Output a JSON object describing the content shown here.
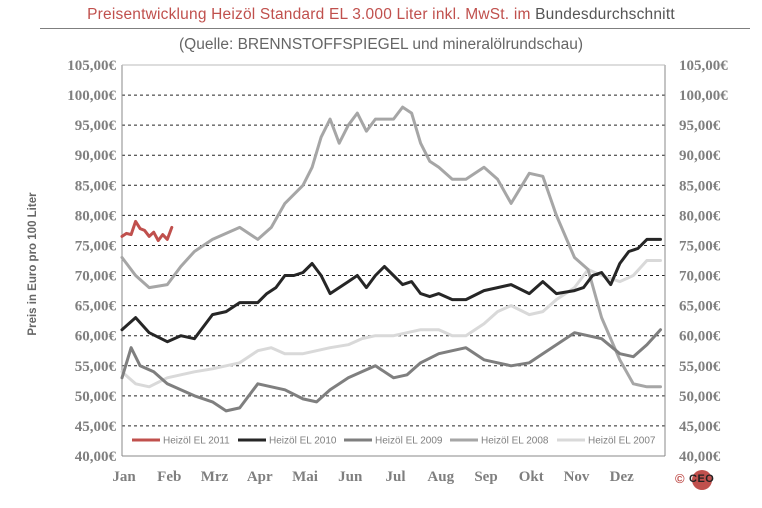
{
  "title": {
    "part1": "Preisentwicklung Heizöl Standard EL 3.000 Liter inkl. MwSt. im",
    "part2": "Bundesdurchschnitt"
  },
  "subtitle": "(Quelle: BRENNSTOFFSPIEGEL und mineralölrundschau)",
  "copyright": {
    "symbol": "©",
    "logo_text": "CEO"
  },
  "chart_data": {
    "type": "line",
    "ylabel": "Preis in Euro pro 100 Liter",
    "ylim": [
      40,
      105
    ],
    "y_ticks": [
      "40,00€",
      "45,00€",
      "50,00€",
      "55,00€",
      "60,00€",
      "65,00€",
      "70,00€",
      "75,00€",
      "80,00€",
      "85,00€",
      "90,00€",
      "95,00€",
      "100,00€",
      "105,00€"
    ],
    "x_ticks": [
      "Jan",
      "Feb",
      "Mrz",
      "Apr",
      "Mai",
      "Jun",
      "Jul",
      "Aug",
      "Sep",
      "Okt",
      "Nov",
      "Dez"
    ],
    "x_axis": "month of year (0 = 1 Jan, 12 = 31 Dec)",
    "grid": true,
    "legend": "bottom-inside",
    "series": [
      {
        "name": "Heizöl EL 2011",
        "color": "#c0504d",
        "width": 3,
        "x": [
          0,
          0.1,
          0.2,
          0.3,
          0.4,
          0.5,
          0.6,
          0.7,
          0.8,
          0.9,
          1.0,
          1.1
        ],
        "y": [
          76.5,
          77.0,
          76.8,
          79.0,
          77.8,
          77.5,
          76.5,
          77.2,
          75.8,
          76.8,
          76.0,
          78.0
        ]
      },
      {
        "name": "Heizöl EL 2010",
        "color": "#262626",
        "width": 3,
        "x": [
          0,
          0.3,
          0.6,
          1.0,
          1.3,
          1.6,
          2.0,
          2.3,
          2.6,
          3.0,
          3.2,
          3.4,
          3.6,
          3.8,
          4.0,
          4.2,
          4.4,
          4.6,
          4.8,
          5.0,
          5.2,
          5.4,
          5.6,
          5.8,
          6.0,
          6.2,
          6.4,
          6.6,
          6.8,
          7.0,
          7.3,
          7.6,
          8.0,
          8.3,
          8.6,
          9.0,
          9.3,
          9.6,
          10.0,
          10.2,
          10.4,
          10.6,
          10.8,
          11.0,
          11.2,
          11.4,
          11.6,
          11.9
        ],
        "y": [
          61,
          63,
          60.5,
          59,
          60,
          59.5,
          63.5,
          64,
          65.5,
          65.5,
          67,
          68,
          70,
          70,
          70.5,
          72,
          70,
          67,
          68,
          69,
          70,
          68,
          70,
          71.5,
          70,
          68.5,
          69,
          67,
          66.5,
          67,
          66,
          66,
          67.5,
          68,
          68.5,
          67,
          69,
          67,
          67.5,
          68,
          70,
          70.5,
          68.5,
          72,
          74,
          74.5,
          76,
          76
        ]
      },
      {
        "name": "Heizöl EL 2009",
        "color": "#7f7f7f",
        "width": 3,
        "x": [
          0,
          0.2,
          0.4,
          0.7,
          1.0,
          1.3,
          1.6,
          2.0,
          2.3,
          2.6,
          3.0,
          3.3,
          3.6,
          4.0,
          4.3,
          4.6,
          5.0,
          5.3,
          5.6,
          6.0,
          6.3,
          6.6,
          7.0,
          7.3,
          7.6,
          8.0,
          8.3,
          8.6,
          9.0,
          9.3,
          9.6,
          10.0,
          10.3,
          10.6,
          11.0,
          11.3,
          11.6,
          11.9
        ],
        "y": [
          53,
          58,
          55,
          54,
          52,
          51,
          50,
          49,
          47.5,
          48,
          52,
          51.5,
          51,
          49.5,
          49,
          51,
          53,
          54,
          55,
          53,
          53.5,
          55.5,
          57,
          57.5,
          58,
          56,
          55.5,
          55,
          55.5,
          57,
          58.5,
          60.5,
          60,
          59.5,
          57,
          56.5,
          58.5,
          61
        ]
      },
      {
        "name": "Heizöl EL 2008",
        "color": "#a6a6a6",
        "width": 3,
        "x": [
          0,
          0.3,
          0.6,
          1.0,
          1.3,
          1.6,
          2.0,
          2.3,
          2.6,
          3.0,
          3.3,
          3.6,
          4.0,
          4.2,
          4.4,
          4.6,
          4.8,
          5.0,
          5.2,
          5.4,
          5.6,
          5.8,
          6.0,
          6.2,
          6.4,
          6.6,
          6.8,
          7.0,
          7.3,
          7.6,
          8.0,
          8.3,
          8.6,
          9.0,
          9.3,
          9.6,
          10.0,
          10.3,
          10.6,
          11.0,
          11.3,
          11.6,
          11.9
        ],
        "y": [
          73,
          70,
          68,
          68.5,
          71.5,
          74,
          76,
          77,
          78,
          76,
          78,
          82,
          85,
          88,
          93,
          96,
          92,
          95,
          97,
          94,
          96,
          96,
          96,
          98,
          97,
          92,
          89,
          88,
          86,
          86,
          88,
          86,
          82,
          87,
          86.5,
          80,
          73,
          71,
          63,
          56,
          52,
          51.5,
          51.5
        ]
      },
      {
        "name": "Heizöl EL 2007",
        "color": "#d9d9d9",
        "width": 3,
        "x": [
          0,
          0.3,
          0.6,
          1.0,
          1.3,
          1.6,
          2.0,
          2.3,
          2.6,
          3.0,
          3.3,
          3.6,
          4.0,
          4.3,
          4.6,
          5.0,
          5.3,
          5.6,
          6.0,
          6.3,
          6.6,
          7.0,
          7.3,
          7.6,
          8.0,
          8.3,
          8.6,
          9.0,
          9.3,
          9.6,
          10.0,
          10.3,
          10.6,
          11.0,
          11.3,
          11.6,
          11.9
        ],
        "y": [
          54,
          52,
          51.5,
          53,
          53.5,
          54,
          54.5,
          55,
          55.5,
          57.5,
          58,
          57,
          57,
          57.5,
          58,
          58.5,
          59.5,
          60,
          60,
          60.5,
          61,
          61,
          60,
          60,
          62,
          64,
          65,
          63.5,
          64,
          66,
          68,
          71,
          70,
          69,
          70,
          72.5,
          72.5
        ]
      }
    ]
  }
}
